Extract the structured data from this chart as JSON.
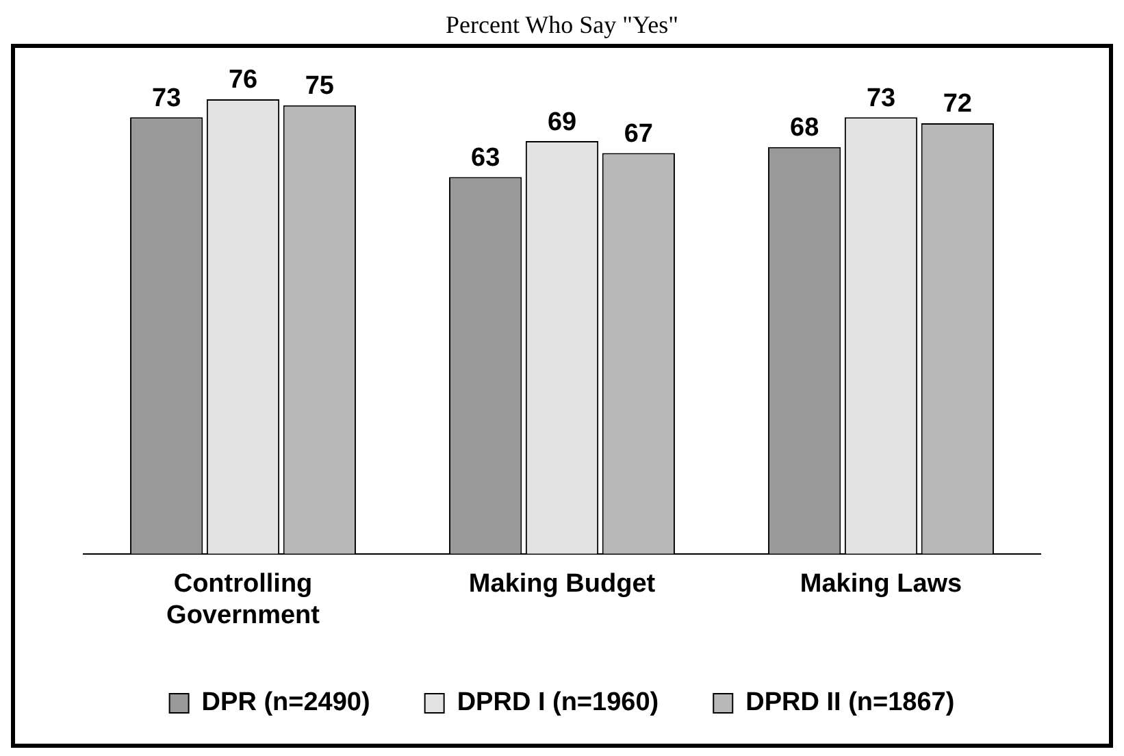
{
  "chart_data": {
    "type": "bar",
    "title": "Percent Who Say \"Yes\"",
    "categories": [
      "Controlling Government",
      "Making Budget",
      "Making Laws"
    ],
    "series": [
      {
        "name": "DPR (n=2490)",
        "color": "#999999",
        "values": [
          73,
          63,
          68
        ]
      },
      {
        "name": "DPRD I (n=1960)",
        "color": "#e3e3e3",
        "values": [
          76,
          69,
          73
        ]
      },
      {
        "name": "DPRD II (n=1867)",
        "color": "#b8b8b8",
        "values": [
          75,
          67,
          72
        ]
      }
    ],
    "data_labels": true,
    "grid": false,
    "legend": "bottom"
  }
}
